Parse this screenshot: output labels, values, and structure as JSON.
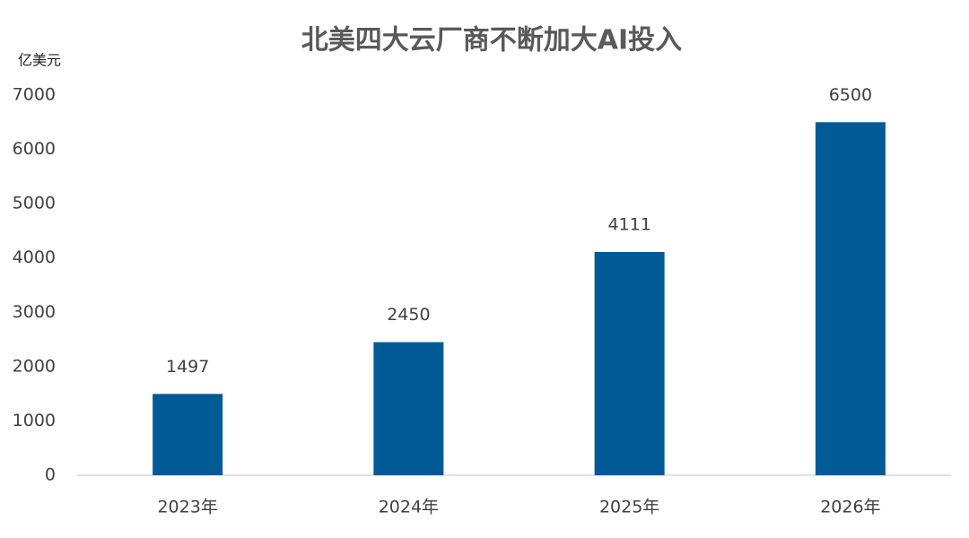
{
  "chart_data": {
    "type": "bar",
    "title": "北美四大云厂商不断加大AI投入",
    "y_label": "亿美元",
    "categories": [
      "2023年",
      "2024年",
      "2025年",
      "2026年"
    ],
    "values": [
      1497,
      2450,
      4111,
      6500
    ],
    "color": "#005a96",
    "ylim": [
      0,
      7000
    ],
    "yticks": [
      0,
      1000,
      2000,
      3000,
      4000,
      5000,
      6000,
      7000
    ],
    "grid": false
  }
}
